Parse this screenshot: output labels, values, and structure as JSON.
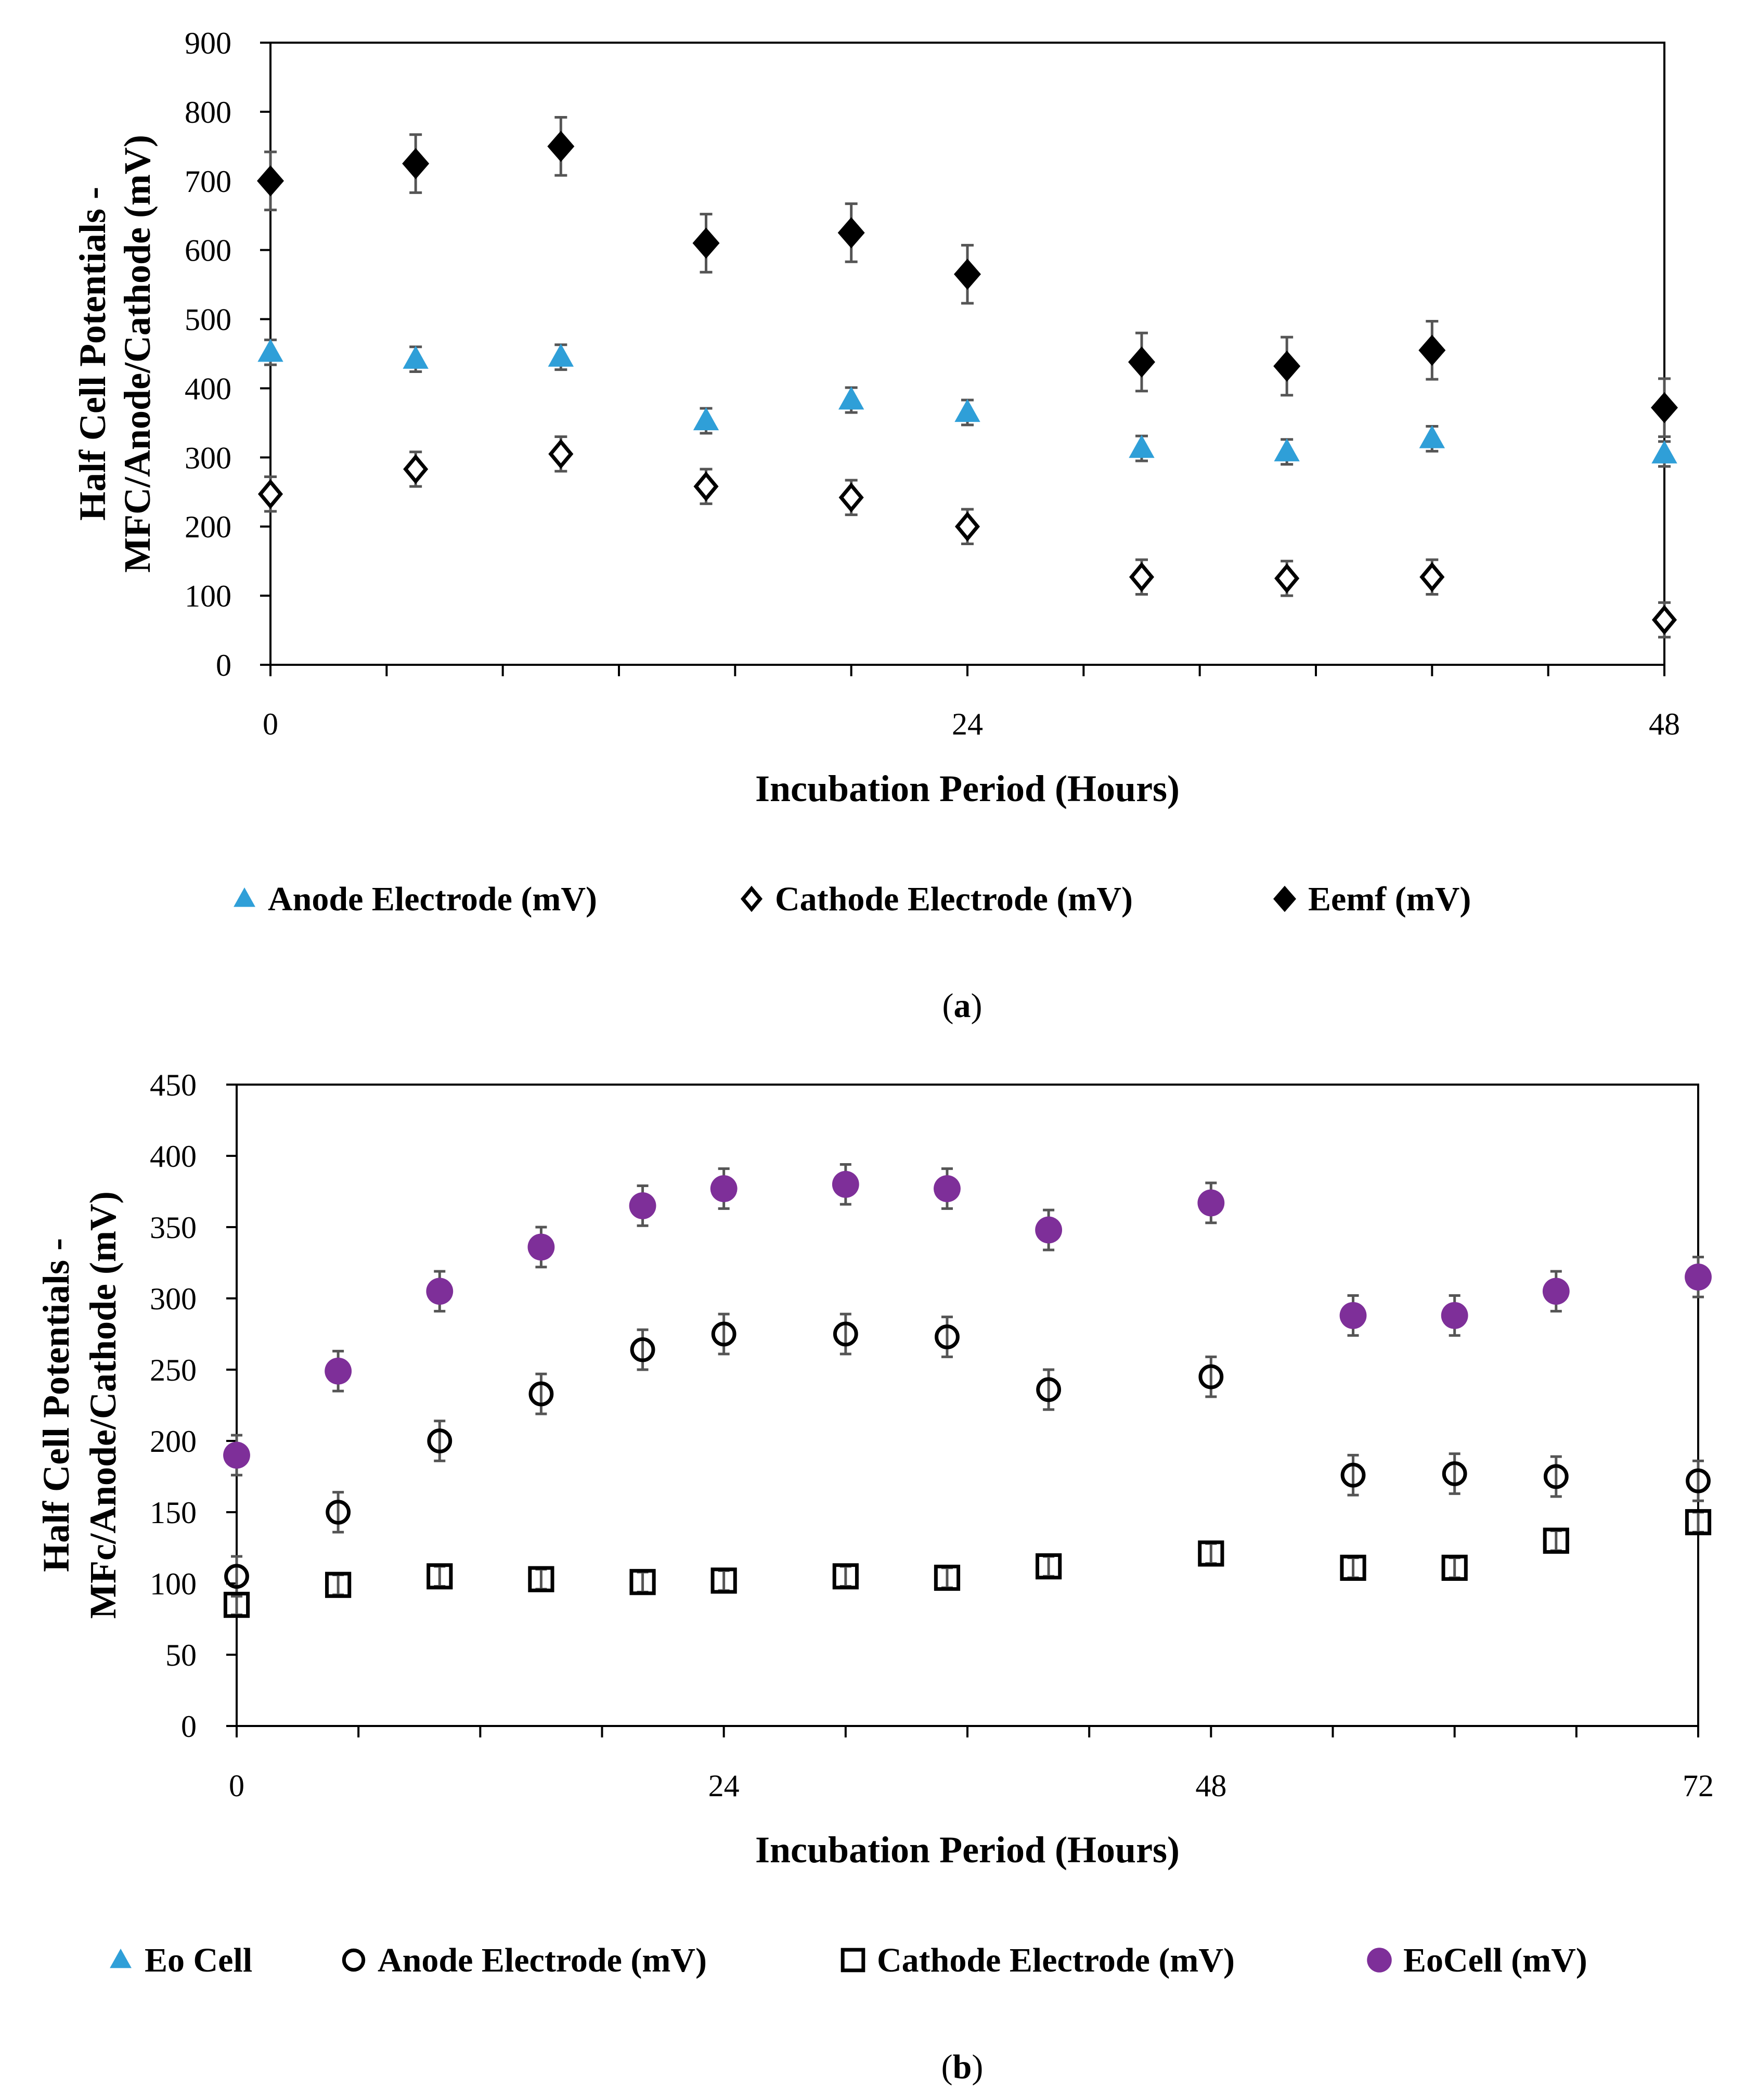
{
  "chart_data": [
    {
      "id": "a",
      "type": "scatter",
      "caption": "(a)",
      "caption_letter": "a",
      "xlabel": "Incubation Period (Hours)",
      "ylabel_line1": "Half Cell Potentials -",
      "ylabel_line2": "MFC/Anode/Cathode (mV)",
      "xlim": [
        0,
        48
      ],
      "ylim": [
        0,
        900
      ],
      "xticks": [
        0,
        24,
        48
      ],
      "yticks": [
        0,
        100,
        200,
        300,
        400,
        500,
        600,
        700,
        800,
        900
      ],
      "grid": false,
      "legend_position": "bottom",
      "series": [
        {
          "name": "Anode Electrode (mV)",
          "marker": "triangle",
          "color": "#2f9fd8",
          "x": [
            0,
            5,
            10,
            15,
            20,
            24,
            30,
            35,
            40,
            48
          ],
          "y": [
            452,
            442,
            445,
            353,
            383,
            365,
            313,
            308,
            327,
            305
          ],
          "err": [
            18,
            18,
            18,
            18,
            18,
            18,
            18,
            18,
            18,
            18
          ]
        },
        {
          "name": "Cathode Electrode (mV)",
          "marker": "diamond-open",
          "color": "#000000",
          "x": [
            0,
            5,
            10,
            15,
            20,
            24,
            30,
            35,
            40,
            48
          ],
          "y": [
            247,
            283,
            305,
            258,
            242,
            200,
            127,
            125,
            127,
            65
          ],
          "err": [
            25,
            25,
            25,
            25,
            25,
            25,
            25,
            25,
            25,
            25
          ]
        },
        {
          "name": "Eemf (mV)",
          "marker": "diamond-filled",
          "color": "#000000",
          "x": [
            0,
            5,
            10,
            15,
            20,
            24,
            30,
            35,
            40,
            48
          ],
          "y": [
            700,
            725,
            750,
            610,
            625,
            565,
            438,
            432,
            455,
            372
          ],
          "err": [
            42,
            42,
            42,
            42,
            42,
            42,
            42,
            42,
            42,
            42
          ]
        }
      ]
    },
    {
      "id": "b",
      "type": "scatter",
      "caption": "(b)",
      "caption_letter": "b",
      "xlabel": "Incubation Period (Hours)",
      "ylabel_line1": "Half Cell Potentials -",
      "ylabel_line2": "MFc/Anode/Cathode (mV)",
      "xlim": [
        0,
        72
      ],
      "ylim": [
        0,
        450
      ],
      "xticks": [
        0,
        24,
        48,
        72
      ],
      "yticks": [
        0,
        50,
        100,
        150,
        200,
        250,
        300,
        350,
        400,
        450
      ],
      "grid": false,
      "legend_position": "bottom",
      "series": [
        {
          "name": "Eo Cell",
          "marker": "triangle",
          "color": "#2f9fd8",
          "x": [],
          "y": [],
          "err": []
        },
        {
          "name": "Anode Electrode (mV)",
          "marker": "circle-open",
          "color": "#000000",
          "x": [
            0,
            5,
            10,
            15,
            20,
            24,
            30,
            35,
            40,
            48,
            55,
            60,
            65,
            72
          ],
          "y": [
            105,
            150,
            200,
            233,
            264,
            275,
            275,
            273,
            236,
            245,
            176,
            177,
            175,
            172
          ],
          "err": [
            14,
            14,
            14,
            14,
            14,
            14,
            14,
            14,
            14,
            14,
            14,
            14,
            14,
            14
          ]
        },
        {
          "name": "Cathode Electrode (mV)",
          "marker": "square-open",
          "color": "#000000",
          "x": [
            0,
            5,
            10,
            15,
            20,
            24,
            30,
            35,
            40,
            48,
            55,
            60,
            65,
            72
          ],
          "y": [
            85,
            99,
            105,
            103,
            101,
            102,
            105,
            104,
            112,
            121,
            111,
            111,
            130,
            143
          ],
          "err": [
            7,
            7,
            7,
            7,
            7,
            7,
            7,
            7,
            7,
            7,
            7,
            7,
            7,
            7
          ]
        },
        {
          "name": "EoCell (mV)",
          "marker": "circle-filled",
          "color": "#7e2f99",
          "x": [
            0,
            5,
            10,
            15,
            20,
            24,
            30,
            35,
            40,
            48,
            55,
            60,
            65,
            72
          ],
          "y": [
            190,
            249,
            305,
            336,
            365,
            377,
            380,
            377,
            348,
            367,
            288,
            288,
            305,
            315
          ],
          "err": [
            14,
            14,
            14,
            14,
            14,
            14,
            14,
            14,
            14,
            14,
            14,
            14,
            14,
            14
          ]
        }
      ]
    }
  ]
}
